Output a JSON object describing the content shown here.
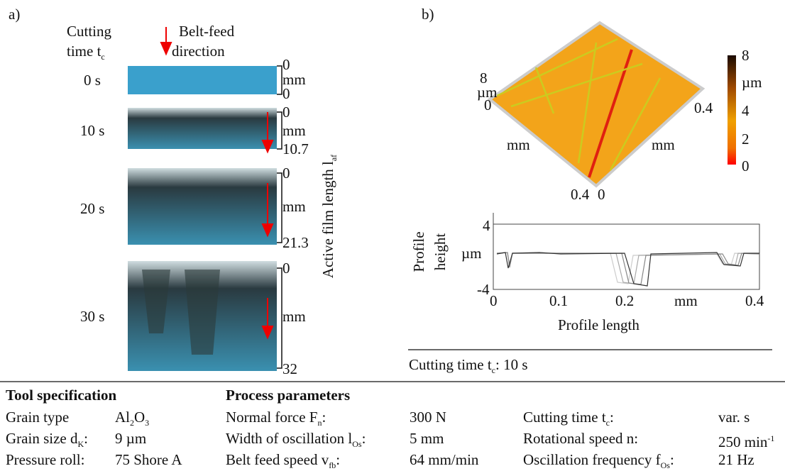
{
  "panel_a": {
    "label": "a)",
    "time_header_1": "Cutting",
    "time_header_2": [
      {
        "t": "time t"
      },
      {
        "sub": "c"
      }
    ],
    "belt_feed_1": "Belt-feed",
    "belt_feed_2": "direction",
    "rows": [
      {
        "time": "0 s",
        "top": "0",
        "unit": "mm",
        "bottom": "0"
      },
      {
        "time": "10 s",
        "top": "0",
        "unit": "mm",
        "bottom": "10.7"
      },
      {
        "time": "20 s",
        "top": "0",
        "unit": "mm",
        "bottom": "21.3"
      },
      {
        "time": "30 s",
        "top": "0",
        "unit": "mm",
        "bottom": "32"
      }
    ],
    "axis_label": [
      {
        "t": "Active film length l"
      },
      {
        "sub": "af"
      }
    ]
  },
  "panel_b": {
    "label": "b)",
    "topo": {
      "z_max": "8",
      "z_unit": "µm",
      "z_min": "0",
      "right_end": "0.4",
      "x_unit": "mm",
      "y_unit": "mm",
      "bottom_left": "0.4",
      "bottom_right": "0"
    },
    "colorbar": [
      "8",
      "µm",
      "4",
      "2",
      "0"
    ],
    "profile": {
      "y_label_1": "Profile",
      "y_label_2": "height",
      "y_ticks": [
        "4",
        "µm",
        "-4"
      ],
      "x_ticks": [
        "0",
        "0.1",
        "0.2",
        "mm",
        "0.4"
      ],
      "x_label": "Profile length"
    },
    "caption": [
      {
        "t": "Cutting time t"
      },
      {
        "sub": "c"
      },
      {
        "t": ": 10 s"
      }
    ]
  },
  "tool_spec": {
    "title": "Tool specification",
    "rows": [
      [
        [
          {
            "t": "Grain type"
          }
        ],
        [
          {
            "t": "Al"
          },
          {
            "sub": "2"
          },
          {
            "t": "O"
          },
          {
            "sub": "3"
          }
        ]
      ],
      [
        [
          {
            "t": "Grain size d"
          },
          {
            "sub": "K"
          },
          {
            "t": ":"
          }
        ],
        [
          {
            "t": "9 µm"
          }
        ]
      ],
      [
        [
          {
            "t": "Pressure roll:"
          }
        ],
        [
          {
            "t": "75 Shore A"
          }
        ]
      ]
    ]
  },
  "process": {
    "title": "Process parameters",
    "rows": [
      [
        [
          {
            "t": "Normal force F"
          },
          {
            "sub": "n"
          },
          {
            "t": ":"
          }
        ],
        [
          {
            "t": "300 N"
          }
        ],
        [
          {
            "t": "Cutting time t"
          },
          {
            "sub": "c"
          },
          {
            "t": ":"
          }
        ],
        [
          {
            "t": "var. s"
          }
        ]
      ],
      [
        [
          {
            "t": "Width of oscillation  l"
          },
          {
            "sub": "Os"
          },
          {
            "t": ":"
          }
        ],
        [
          {
            "t": "5 mm"
          }
        ],
        [
          {
            "t": "Rotational speed n:"
          }
        ],
        [
          {
            "t": "250 min"
          },
          {
            "sup": "-1"
          }
        ]
      ],
      [
        [
          {
            "t": "Belt feed speed v"
          },
          {
            "sub": "fb"
          },
          {
            "t": ":"
          }
        ],
        [
          {
            "t": "64 mm/min"
          }
        ],
        [
          {
            "t": "Oscillation frequency f"
          },
          {
            "sub": "Os"
          },
          {
            "t": ":"
          }
        ],
        [
          {
            "t": "21 Hz"
          }
        ]
      ]
    ]
  }
}
